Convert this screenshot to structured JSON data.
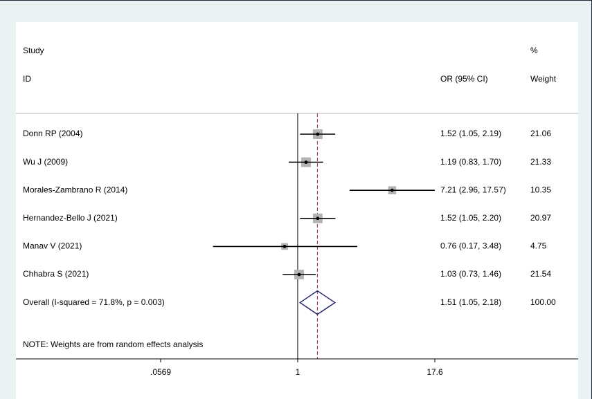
{
  "header": {
    "study_label": "Study",
    "id_label": "ID",
    "or_label": "OR (95% CI)",
    "pct_label": "%",
    "weight_label": "Weight"
  },
  "note": "NOTE: Weights are from random effects analysis",
  "colors": {
    "background": "#eaf2f3",
    "panel": "#ffffff",
    "box": "#b3b3b3",
    "line": "#000000",
    "diamond": "#1a1a6e",
    "overall_line": "#a0224a",
    "frame": "#1a2a38"
  },
  "chart_data": {
    "type": "forest",
    "scale": "log",
    "xlim": [
      0.0569,
      17.6
    ],
    "x_ticks": [
      {
        "value": 0.0569,
        "label": ".0569"
      },
      {
        "value": 1,
        "label": "1"
      },
      {
        "value": 17.6,
        "label": "17.6"
      }
    ],
    "null_line": 1,
    "studies": [
      {
        "name": "Donn RP (2004)",
        "or": 1.52,
        "lo": 1.05,
        "hi": 2.19,
        "ci_text": "1.52 (1.05, 2.19)",
        "weight": 21.06,
        "weight_text": "21.06"
      },
      {
        "name": "Wu J (2009)",
        "or": 1.19,
        "lo": 0.83,
        "hi": 1.7,
        "ci_text": "1.19 (0.83, 1.70)",
        "weight": 21.33,
        "weight_text": "21.33"
      },
      {
        "name": "Morales-Zambrano R (2014)",
        "or": 7.21,
        "lo": 2.96,
        "hi": 17.57,
        "ci_text": "7.21 (2.96, 17.57)",
        "weight": 10.35,
        "weight_text": "10.35"
      },
      {
        "name": "Hernandez-Bello J (2021)",
        "or": 1.52,
        "lo": 1.05,
        "hi": 2.2,
        "ci_text": "1.52 (1.05, 2.20)",
        "weight": 20.97,
        "weight_text": "20.97"
      },
      {
        "name": "Manav V (2021)",
        "or": 0.76,
        "lo": 0.17,
        "hi": 3.48,
        "ci_text": "0.76 (0.17, 3.48)",
        "weight": 4.75,
        "weight_text": "4.75"
      },
      {
        "name": "Chhabra S (2021)",
        "or": 1.03,
        "lo": 0.73,
        "hi": 1.46,
        "ci_text": "1.03 (0.73, 1.46)",
        "weight": 21.54,
        "weight_text": "21.54"
      }
    ],
    "overall": {
      "label": "Overall  (I-squared = 71.8%, p = 0.003)",
      "or": 1.51,
      "lo": 1.05,
      "hi": 2.18,
      "ci_text": "1.51 (1.05, 2.18)",
      "weight": 100.0,
      "weight_text": "100.00"
    }
  }
}
